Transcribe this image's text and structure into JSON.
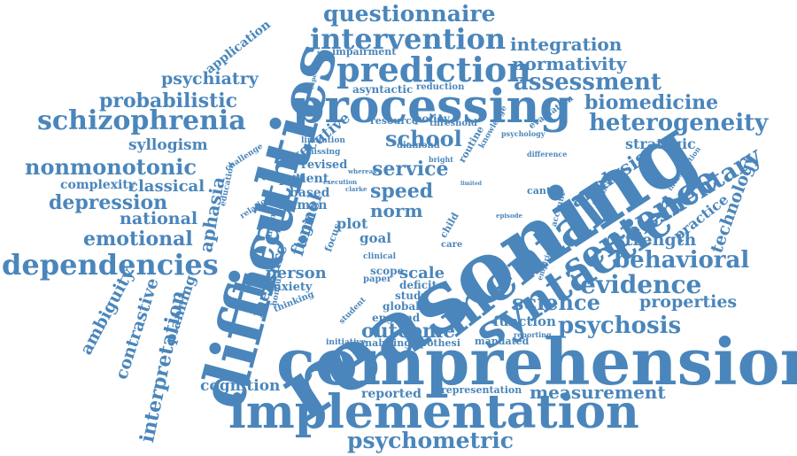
{
  "color": "#4a86bb",
  "words": [
    "comprehension",
    "reasoning",
    "difficulties",
    "implementation",
    "processing",
    "mental",
    "syntactic",
    "sentence",
    "prediction",
    "intervention",
    "questionnaire",
    "schizophrenia",
    "dependencies",
    "health",
    "psychometric",
    "nonmonotonic",
    "elementary",
    "evidence",
    "behavioral",
    "heterogeneity",
    "assessment",
    "biomedicine",
    "normativity",
    "integration",
    "psychosis",
    "science",
    "measurement",
    "probabilistic",
    "psychiatry",
    "depression",
    "emotional",
    "school",
    "outcome",
    "analysis",
    "service",
    "interpretation",
    "national",
    "aphasia",
    "funnel",
    "speed",
    "norm",
    "properties",
    "strength",
    "technology",
    "cognition",
    "contrastive",
    "ambiguity",
    "classical",
    "syllogism",
    "complexity",
    "executive",
    "measure",
    "person",
    "scale",
    "function",
    "strategic",
    "practice",
    "planning",
    "application",
    "asyntactic",
    "impairment",
    "reduction",
    "reported",
    "representation",
    "mandated",
    "analysing",
    "hypothesi",
    "initiative",
    "england",
    "global",
    "study",
    "deficit",
    "anxiety",
    "thinking",
    "paper",
    "student",
    "plot",
    "goal",
    "logic",
    "human",
    "based",
    "patient",
    "revised",
    "focus",
    "scope",
    "policy",
    "diamond",
    "routine",
    "threshold",
    "resource",
    "evaluation",
    "knowledge",
    "psychology",
    "limitation",
    "missing",
    "challenge",
    "education",
    "relation",
    "finding",
    "honour",
    "child",
    "care",
    "clinical",
    "cantab",
    "investigation",
    "empirical",
    "account",
    "latencies",
    "difference",
    "bright",
    "whereas",
    "execution",
    "clarke",
    "episode",
    "reporting",
    "experiment",
    "limited"
  ]
}
